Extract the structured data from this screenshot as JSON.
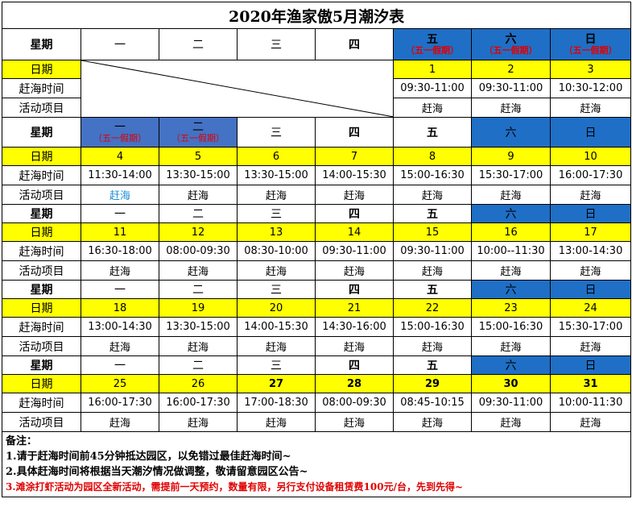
{
  "title": "2020年渔家傲5月潮汐表",
  "labels": {
    "weekday": "星期",
    "date": "日期",
    "time": "赶海时间",
    "activity": "活动项目"
  },
  "holiday_note": "（五一假期）",
  "weekdays": [
    "一",
    "二",
    "三",
    "四",
    "五",
    "六",
    "日"
  ],
  "weeks": [
    {
      "dates": [
        "",
        "",
        "",
        "",
        "1",
        "2",
        "3"
      ],
      "times": [
        "",
        "",
        "",
        "",
        "09:30-11:00",
        "09:30-11:00",
        "10:30-12:00"
      ],
      "acts": [
        "",
        "",
        "",
        "",
        "赶海",
        "赶海",
        "赶海"
      ]
    },
    {
      "dates": [
        "4",
        "5",
        "6",
        "7",
        "8",
        "9",
        "10"
      ],
      "times": [
        "11:30-14:00",
        "13:30-15:00",
        "13:30-15:00",
        "14:00-15:30",
        "15:00-16:30",
        "15:30-17:00",
        "16:00-17:30"
      ],
      "acts": [
        "赶海",
        "赶海",
        "赶海",
        "赶海",
        "赶海",
        "赶海",
        "赶海"
      ]
    },
    {
      "dates": [
        "11",
        "12",
        "13",
        "14",
        "15",
        "16",
        "17"
      ],
      "times": [
        "16:30-18:00",
        "08:00-09:30",
        "08:30-10:00",
        "09:30-11:00",
        "09:30-11:00",
        "10:00--11:30",
        "13:00-14:30"
      ],
      "acts": [
        "赶海",
        "赶海",
        "赶海",
        "赶海",
        "赶海",
        "赶海",
        "赶海"
      ]
    },
    {
      "dates": [
        "18",
        "19",
        "20",
        "21",
        "22",
        "23",
        "24"
      ],
      "times": [
        "13:00-14:30",
        "13:30-15:00",
        "14:00-15:30",
        "14:30-16:00",
        "15:00-16:30",
        "15:00-16:30",
        "15:30-17:00"
      ],
      "acts": [
        "赶海",
        "赶海",
        "赶海",
        "赶海",
        "赶海",
        "赶海",
        "赶海"
      ]
    },
    {
      "dates": [
        "25",
        "26",
        "27",
        "28",
        "29",
        "30",
        "31"
      ],
      "times": [
        "16:00-17:30",
        "16:00-17:30",
        "17:00-18:30",
        "08:00-09:30",
        "08:45-10:15",
        "09:30-11:00",
        "10:00-11:30"
      ],
      "acts": [
        "赶海",
        "赶海",
        "赶海",
        "赶海",
        "赶海",
        "赶海",
        "赶海"
      ]
    }
  ],
  "notes": {
    "heading": "备注：",
    "line1": "1.请于赶海时间前45分钟抵达园区，以免错过最佳赶海时间~",
    "line2": "2.具体赶海时间将根据当天潮汐情况做调整，敬请留意园区公告~",
    "line3": "3.滩涂打虾活动为园区全新活动，需提前一天预约，数量有限，另行支付设备租赁费100元/台，先到先得~"
  },
  "colors": {
    "weekend_header": "#1f6fc6",
    "holiday_header": "#4472c4",
    "date_row": "#ffff00",
    "holiday_text": "#e00000",
    "link_text": "#1d8fd8"
  }
}
